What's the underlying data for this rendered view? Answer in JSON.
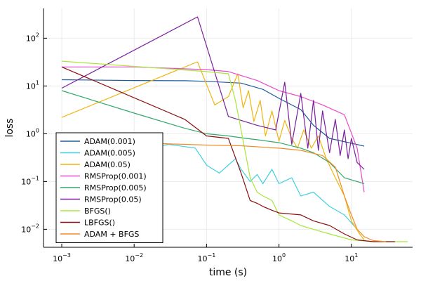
{
  "chart_data": {
    "type": "line",
    "xlabel": "time (s)",
    "ylabel": "loss",
    "xscale": "log",
    "yscale": "log",
    "xlim": [
      0.00056,
      70
    ],
    "ylim": [
      0.0042,
      420
    ],
    "x_ticks": [
      {
        "value": 0.001,
        "base": "10",
        "exp": "−3"
      },
      {
        "value": 0.01,
        "base": "10",
        "exp": "−2"
      },
      {
        "value": 0.1,
        "base": "10",
        "exp": "−1"
      },
      {
        "value": 1,
        "base": "10",
        "exp": "0"
      },
      {
        "value": 10,
        "base": "10",
        "exp": "1"
      }
    ],
    "y_ticks": [
      {
        "value": 0.01,
        "base": "10",
        "exp": "−2"
      },
      {
        "value": 0.1,
        "base": "10",
        "exp": "−1"
      },
      {
        "value": 1,
        "base": "10",
        "exp": "0"
      },
      {
        "value": 10,
        "base": "10",
        "exp": "1"
      },
      {
        "value": 100,
        "base": "10",
        "exp": "2"
      }
    ],
    "grid": true,
    "legend_position": "bottom-left",
    "series": [
      {
        "name": "ADAM(0.001)",
        "color": "#1f5b9a",
        "x": [
          0.001,
          0.01,
          0.05,
          0.1,
          0.3,
          0.6,
          1.0,
          2.0,
          3.0,
          5.0,
          15.0
        ],
        "y": [
          13.5,
          13,
          12.9,
          12.5,
          11.5,
          8.5,
          5.5,
          3.2,
          1.5,
          0.8,
          0.55
        ]
      },
      {
        "name": "ADAM(0.005)",
        "color": "#3fcfe2",
        "x": [
          0.001,
          0.005,
          0.01,
          0.03,
          0.07,
          0.1,
          0.15,
          0.25,
          0.3,
          0.4,
          0.5,
          0.6,
          0.8,
          1,
          1.5,
          2,
          3,
          5,
          8,
          12
        ],
        "y": [
          0.2,
          0.25,
          0.45,
          0.6,
          0.5,
          0.22,
          0.15,
          0.3,
          0.18,
          0.1,
          0.14,
          0.09,
          0.18,
          0.09,
          0.12,
          0.05,
          0.06,
          0.03,
          0.02,
          0.01
        ]
      },
      {
        "name": "ADAM(0.05)",
        "color": "#f1b40f",
        "x": [
          0.001,
          0.075,
          0.13,
          0.2,
          0.27,
          0.32,
          0.38,
          0.45,
          0.55,
          0.65,
          0.8,
          1.0,
          1.2,
          1.5,
          1.8,
          2.2,
          2.8,
          3.5,
          4.5,
          6,
          8,
          10,
          13,
          15
        ],
        "y": [
          2.2,
          32,
          4,
          6,
          18,
          3.5,
          8,
          1.8,
          5,
          0.9,
          3,
          0.7,
          1.9,
          0.8,
          0.5,
          1.2,
          0.5,
          0.9,
          0.3,
          0.12,
          0.05,
          0.015,
          0.008,
          0.006
        ]
      },
      {
        "name": "RMSProp(0.001)",
        "color": "#e94bcc",
        "x": [
          0.001,
          0.01,
          0.1,
          0.2,
          0.5,
          1.0,
          2.0,
          4.0,
          8.0,
          12,
          15
        ],
        "y": [
          25,
          25,
          22,
          20,
          13,
          8,
          6,
          4,
          2.5,
          0.5,
          0.06
        ]
      },
      {
        "name": "RMSProp(0.005)",
        "color": "#34a86b",
        "x": [
          0.001,
          0.01,
          0.05,
          0.1,
          0.2,
          0.35,
          0.5,
          1.0,
          2.0,
          3.0,
          5.0,
          8.0,
          15.0
        ],
        "y": [
          8,
          2.7,
          1.3,
          1.0,
          0.9,
          0.8,
          0.75,
          0.65,
          0.5,
          0.4,
          0.25,
          0.12,
          0.09
        ]
      },
      {
        "name": "RMSProp(0.05)",
        "color": "#7b1f9e",
        "x": [
          0.001,
          0.075,
          0.2,
          0.5,
          0.9,
          1.2,
          1.5,
          2.0,
          2.5,
          3.0,
          3.5,
          4.0,
          5.0,
          6.0,
          7.0,
          8.0,
          9.0,
          10,
          12,
          15
        ],
        "y": [
          9,
          280,
          2.3,
          1.5,
          1.2,
          12,
          0.6,
          7,
          0.5,
          5,
          0.45,
          3,
          0.4,
          2,
          0.35,
          1.2,
          0.3,
          0.8,
          0.25,
          0.18
        ]
      },
      {
        "name": "BFGS()",
        "color": "#a8e63a",
        "x": [
          0.001,
          0.1,
          0.2,
          0.25,
          0.3,
          0.4,
          0.5,
          0.6,
          0.8,
          1.0,
          1.5,
          2.0,
          3.0,
          5.0,
          10.0,
          20.0,
          40.0,
          60.0
        ],
        "y": [
          33,
          20,
          18,
          5,
          1.2,
          0.12,
          0.06,
          0.05,
          0.04,
          0.02,
          0.015,
          0.012,
          0.01,
          0.008,
          0.006,
          0.0055,
          0.0055,
          0.0055
        ]
      },
      {
        "name": "LBFGS()",
        "color": "#8b0f0f",
        "x": [
          0.001,
          0.05,
          0.1,
          0.2,
          0.3,
          0.4,
          0.5,
          0.6,
          0.8,
          1.0,
          2.0,
          3.0,
          5.0,
          8.0,
          12.0,
          20.0,
          40.0
        ],
        "y": [
          25,
          2,
          0.9,
          0.8,
          0.15,
          0.04,
          0.035,
          0.03,
          0.025,
          0.022,
          0.02,
          0.015,
          0.012,
          0.008,
          0.006,
          0.0055,
          0.0055
        ]
      },
      {
        "name": "ADAM + BFGS",
        "color": "#f28c28",
        "x": [
          0.001,
          0.01,
          0.05,
          0.1,
          0.3,
          1.0,
          2.0,
          4.0,
          6.0,
          8.0,
          10.0,
          12.0,
          15.0,
          20.0,
          30.0
        ],
        "y": [
          0.7,
          0.65,
          0.6,
          0.58,
          0.56,
          0.5,
          0.45,
          0.35,
          0.2,
          0.05,
          0.02,
          0.01,
          0.007,
          0.0058,
          0.0055
        ]
      }
    ]
  }
}
